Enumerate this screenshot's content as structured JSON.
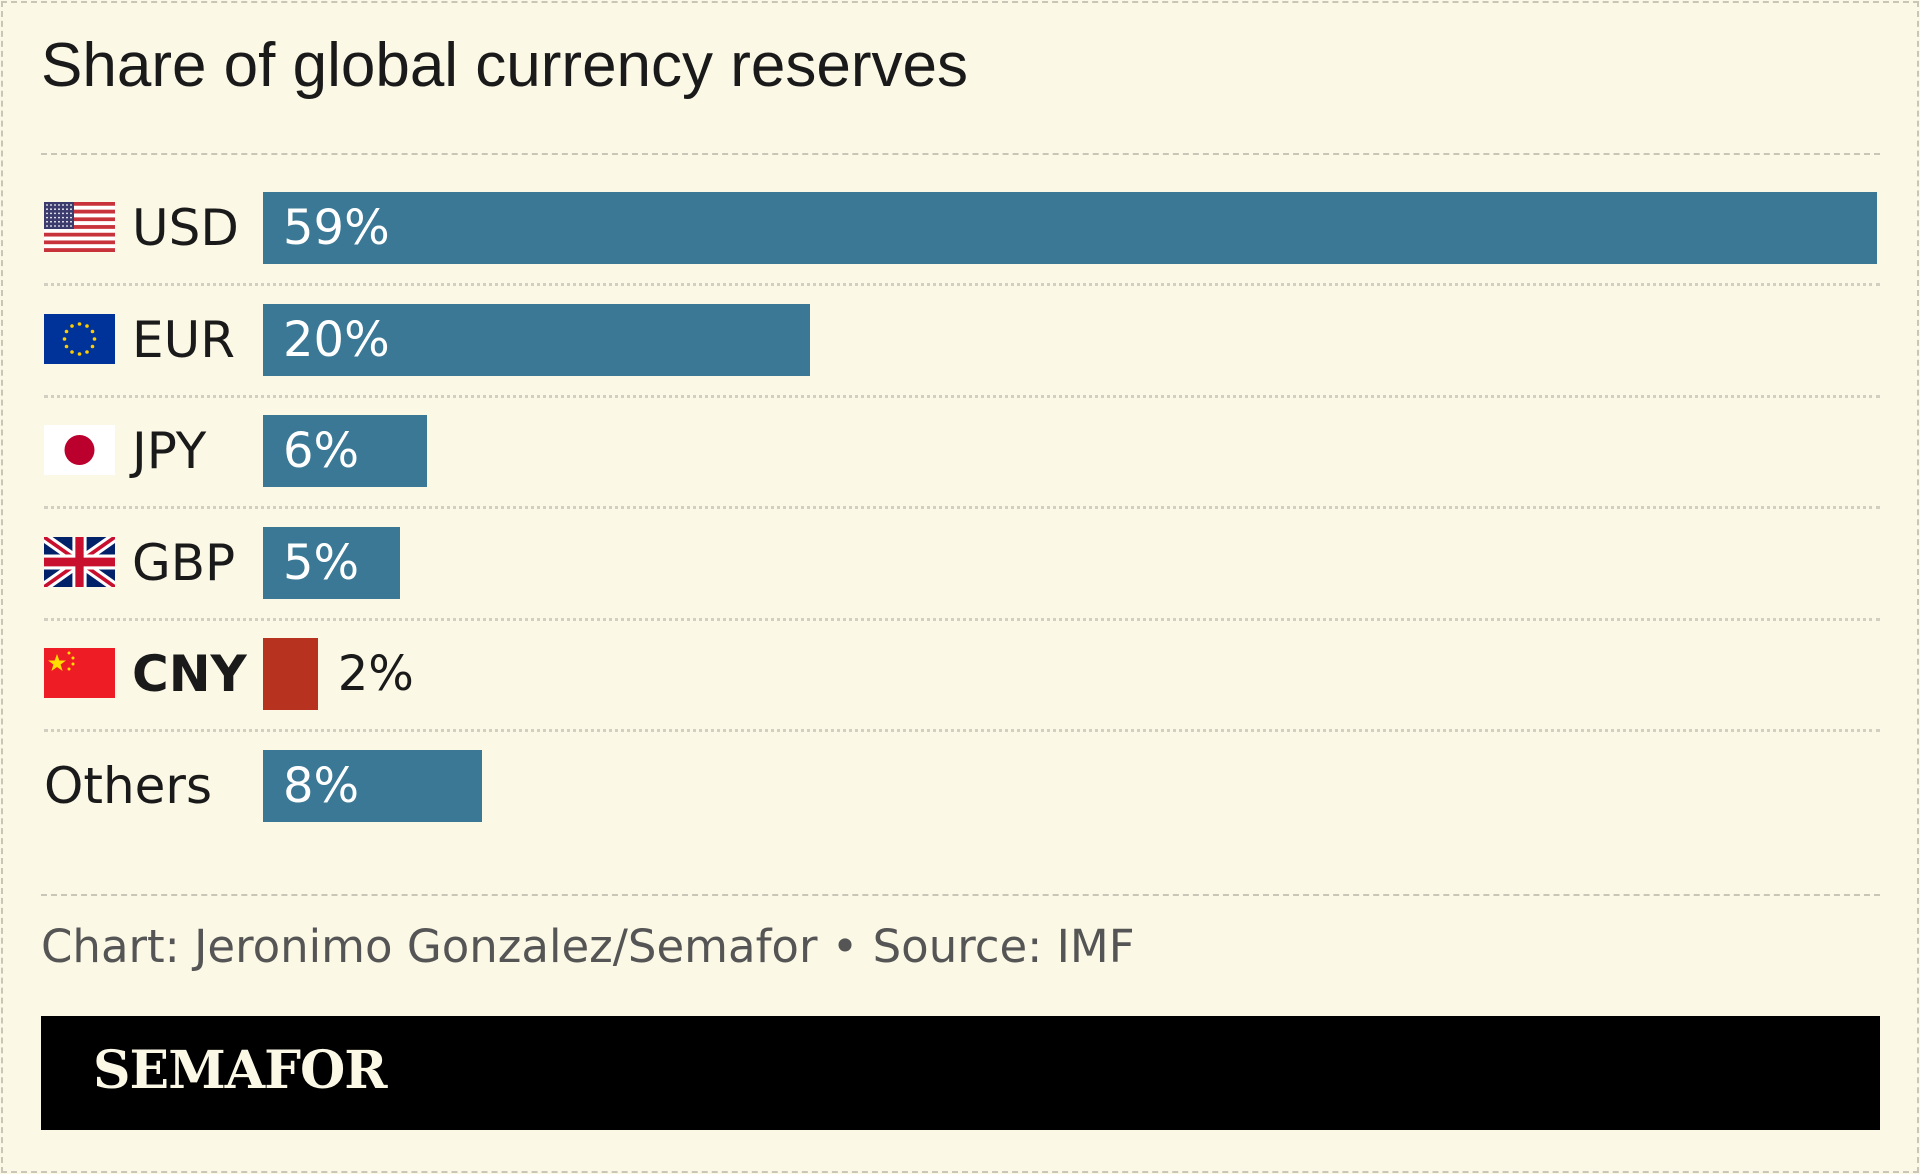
{
  "chart_data": {
    "type": "bar",
    "orientation": "horizontal",
    "title": "Share of global currency reserves",
    "categories": [
      "USD",
      "EUR",
      "JPY",
      "GBP",
      "CNY",
      "Others"
    ],
    "values": [
      59,
      20,
      6,
      5,
      2,
      8
    ],
    "value_labels": [
      "59%",
      "20%",
      "6%",
      "5%",
      "2%",
      "8%"
    ],
    "flags": [
      "us-flag-icon",
      "eu-flag-icon",
      "japan-flag-icon",
      "uk-flag-icon",
      "china-flag-icon",
      null
    ],
    "highlight": "CNY",
    "colors": {
      "default": "#3a7895",
      "highlight": "#b83220"
    },
    "xlim": [
      0,
      59
    ],
    "grid": false
  },
  "credit": "Chart: Jeronimo Gonzalez/Semafor • Source: IMF",
  "logo": "SEMAFOR"
}
